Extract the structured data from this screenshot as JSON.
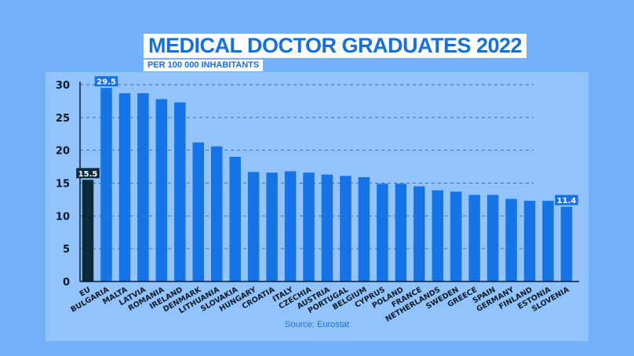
{
  "chart_data": {
    "type": "bar",
    "title": "MEDICAL DOCTOR GRADUATES 2022",
    "subtitle": "PER 100 000 INHABITANTS",
    "source": "Source: Eurostat",
    "xlabel": "",
    "ylabel": "",
    "ylim": [
      0,
      30
    ],
    "yticks": [
      0,
      5,
      10,
      15,
      20,
      25,
      30
    ],
    "grid": true,
    "categories": [
      "EU",
      "BULGARIA",
      "MALTA",
      "LATVIA",
      "ROMANIA",
      "IRELAND",
      "DENMARK",
      "LITHUANIA",
      "SLOVAKIA",
      "HUNGARY",
      "CROATIA",
      "ITALY",
      "CZECHIA",
      "AUSTRIA",
      "PORTUGAL",
      "BELGIUM",
      "CYPRUS",
      "POLAND",
      "FRANCE",
      "NETHERLANDS",
      "SWEDEN",
      "GREECE",
      "SPAIN",
      "GERMANY",
      "FINLAND",
      "ESTONIA",
      "SLOVENIA"
    ],
    "values": [
      15.5,
      29.5,
      28.7,
      28.7,
      27.8,
      27.3,
      21.2,
      20.6,
      19.0,
      16.7,
      16.6,
      16.8,
      16.6,
      16.3,
      16.1,
      15.9,
      14.9,
      14.9,
      14.5,
      13.9,
      13.7,
      13.2,
      13.2,
      12.6,
      12.3,
      12.3,
      11.4
    ],
    "data_labels": {
      "EU": "15.5",
      "BULGARIA": "29.5",
      "SLOVENIA": "11.4"
    },
    "colors": {
      "bar": "#1673e6",
      "eu_bar": "#0a2a3c",
      "background": "#74b1fb",
      "panel": "#92c4fb",
      "title": "#1570dc"
    }
  }
}
